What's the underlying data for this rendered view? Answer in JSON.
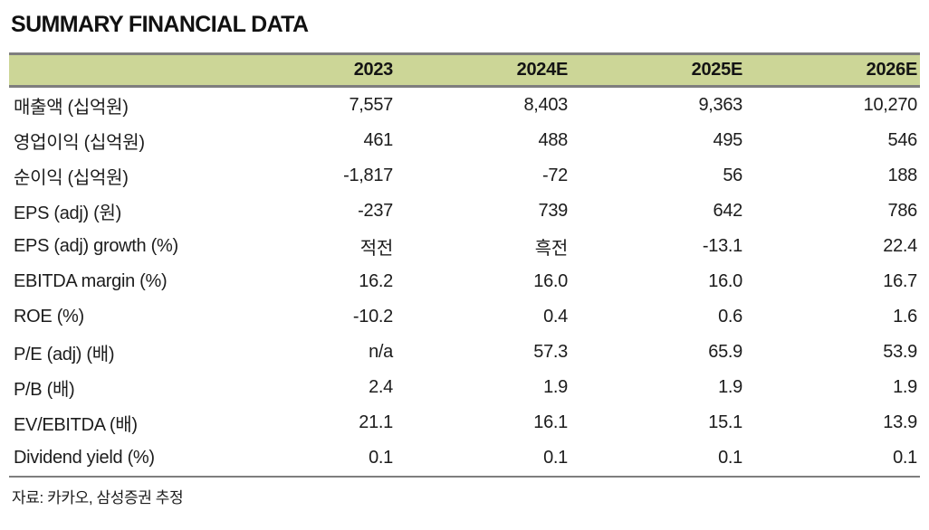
{
  "title": "SUMMARY FINANCIAL DATA",
  "colors": {
    "header_bg": "#ccd697",
    "border_gray": "#7e7e7e",
    "text": "#1c1c1c"
  },
  "table": {
    "columns": [
      "",
      "2023",
      "2024E",
      "2025E",
      "2026E"
    ],
    "rows": [
      {
        "label": "매출액 (십억원)",
        "values": [
          "7,557",
          "8,403",
          "9,363",
          "10,270"
        ]
      },
      {
        "label": "영업이익 (십억원)",
        "values": [
          "461",
          "488",
          "495",
          "546"
        ]
      },
      {
        "label": "순이익 (십억원)",
        "values": [
          "-1,817",
          "-72",
          "56",
          "188"
        ]
      },
      {
        "label": "EPS (adj) (원)",
        "values": [
          "-237",
          "739",
          "642",
          "786"
        ]
      },
      {
        "label": "EPS (adj) growth (%)",
        "values": [
          "적전",
          "흑전",
          "-13.1",
          "22.4"
        ]
      },
      {
        "label": "EBITDA margin (%)",
        "values": [
          "16.2",
          "16.0",
          "16.0",
          "16.7"
        ]
      },
      {
        "label": "ROE (%)",
        "values": [
          "-10.2",
          "0.4",
          "0.6",
          "1.6"
        ]
      },
      {
        "label": "P/E (adj) (배)",
        "values": [
          "n/a",
          "57.3",
          "65.9",
          "53.9"
        ]
      },
      {
        "label": "P/B (배)",
        "values": [
          "2.4",
          "1.9",
          "1.9",
          "1.9"
        ]
      },
      {
        "label": "EV/EBITDA (배)",
        "values": [
          "21.1",
          "16.1",
          "15.1",
          "13.9"
        ]
      },
      {
        "label": "Dividend yield (%)",
        "values": [
          "0.1",
          "0.1",
          "0.1",
          "0.1"
        ]
      }
    ]
  },
  "footer": {
    "source": "자료: 카카오, 삼성증권 추정"
  }
}
